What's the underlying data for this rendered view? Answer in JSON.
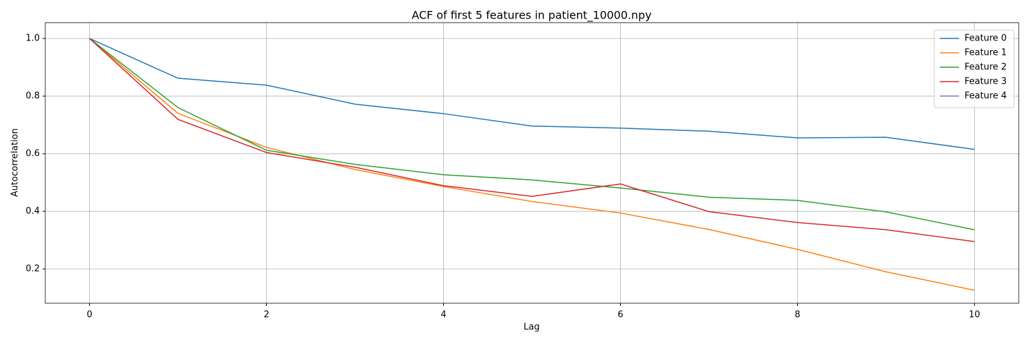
{
  "chart_data": {
    "type": "line",
    "title": "ACF of first 5 features in patient_10000.npy",
    "x_label": "Lag",
    "y_label": "Autocorrelation",
    "x": [
      0,
      1,
      2,
      3,
      4,
      5,
      6,
      7,
      8,
      9,
      10
    ],
    "series": [
      {
        "name": "Feature 0",
        "color": "#1f77b4",
        "values": [
          1.0,
          0.862,
          0.838,
          0.772,
          0.739,
          0.696,
          0.689,
          0.678,
          0.655,
          0.657,
          0.615
        ]
      },
      {
        "name": "Feature 1",
        "color": "#ff7f0e",
        "values": [
          1.0,
          0.74,
          0.622,
          0.545,
          0.486,
          0.434,
          0.394,
          0.337,
          0.268,
          0.19,
          0.126
        ]
      },
      {
        "name": "Feature 2",
        "color": "#2ca02c",
        "values": [
          1.0,
          0.76,
          0.612,
          0.563,
          0.527,
          0.509,
          0.481,
          0.449,
          0.438,
          0.398,
          0.336
        ]
      },
      {
        "name": "Feature 3",
        "color": "#d62728",
        "values": [
          1.0,
          0.719,
          0.604,
          0.553,
          0.489,
          0.452,
          0.495,
          0.399,
          0.361,
          0.336,
          0.295
        ]
      },
      {
        "name": "Feature 4",
        "color": "#9467bd",
        "values": [
          null,
          null,
          null,
          null,
          null,
          null,
          null,
          null,
          null,
          null,
          null
        ]
      }
    ],
    "xlim": [
      -0.5,
      10.5
    ],
    "ylim": [
      0.081,
      1.055
    ],
    "xticks": [
      0,
      2,
      4,
      6,
      8,
      10
    ],
    "yticks": [
      0.2,
      0.4,
      0.6,
      0.8,
      {
        "value": 1.0,
        "label": "1.0"
      }
    ],
    "grid": true,
    "legend": "upper right"
  }
}
